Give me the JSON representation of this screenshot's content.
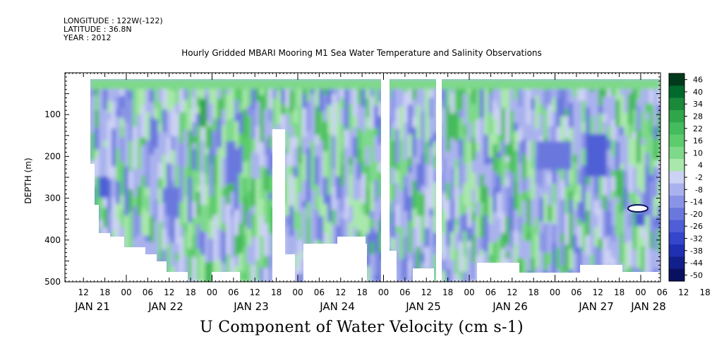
{
  "header": {
    "longitude": "LONGITUDE : 122W(-122)",
    "latitude": "LATITUDE : 36.8N",
    "year": "YEAR : 2012"
  },
  "chart_data": {
    "type": "heatmap",
    "title": "Hourly Gridded MBARI Mooring M1 Sea Water Temperature and Salinity Observations",
    "xlabel": "U Component of Water Velocity (cm s-1)",
    "ylabel": "DEPTH (m)",
    "ylim": [
      500,
      0
    ],
    "y_ticks": [
      100,
      200,
      300,
      400,
      500
    ],
    "x_hour_ticks": [
      "12",
      "18",
      "00",
      "06",
      "12",
      "18",
      "00",
      "06",
      "12",
      "18",
      "00",
      "06",
      "12",
      "18",
      "00",
      "06",
      "12",
      "18",
      "00",
      "06",
      "12",
      "18",
      "00",
      "06",
      "12",
      "18",
      "00",
      "06",
      "12",
      "18",
      "00"
    ],
    "x_date_labels": [
      "JAN 21",
      "JAN 22",
      "JAN 23",
      "JAN 24",
      "JAN 25",
      "JAN 26",
      "JAN 27",
      "JAN 28"
    ],
    "colorbar_labels": [
      "46",
      "40",
      "34",
      "28",
      "22",
      "16",
      "10",
      "4",
      "-2",
      "-8",
      "-14",
      "-20",
      "-26",
      "-32",
      "-38",
      "-44",
      "-50"
    ],
    "colorbar_colors": [
      "#003a1a",
      "#006a2c",
      "#1a8a3a",
      "#2fa64a",
      "#44bb5c",
      "#5ccc6c",
      "#7ed98a",
      "#a9e8ab",
      "#ccd2f4",
      "#aab2ee",
      "#8a94e6",
      "#6a78de",
      "#4f5ed6",
      "#3346cc",
      "#1f30b4",
      "#131f8a",
      "#0a1060"
    ],
    "grid": false,
    "legend_position": "right"
  }
}
